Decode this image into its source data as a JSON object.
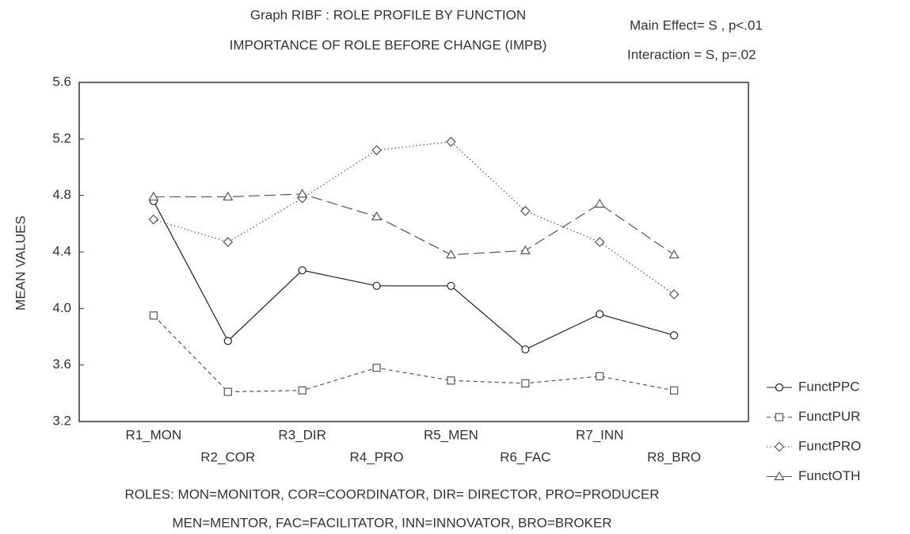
{
  "chart_data": {
    "type": "line",
    "title": "Graph RIBF : ROLE PROFILE  BY FUNCTION",
    "subtitle": "IMPORTANCE OF ROLE BEFORE CHANGE (IMPB)",
    "annotations": [
      "Main Effect= S , p<.01",
      "Interaction = S, p=.02"
    ],
    "y_label": "MEAN VALUES",
    "footnotes": [
      "ROLES: MON=MONITOR, COR=COORDINATOR, DIR= DIRECTOR, PRO=PRODUCER",
      "MEN=MENTOR, FAC=FACILITATOR, INN=INNOVATOR, BRO=BROKER"
    ],
    "categories": [
      "R1_MON",
      "R2_COR",
      "R3_DIR",
      "R4_PRO",
      "R5_MEN",
      "R6_FAC",
      "R7_INN",
      "R8_BRO"
    ],
    "series": [
      {
        "name": "FunctPPC",
        "color": "#222222",
        "marker": "circle",
        "dash": "solid",
        "values": [
          4.76,
          3.77,
          4.27,
          4.16,
          4.16,
          3.71,
          3.96,
          3.81
        ]
      },
      {
        "name": "FunctPUR",
        "color": "#555555",
        "marker": "square",
        "dash": "dashed",
        "values": [
          3.95,
          3.41,
          3.42,
          3.58,
          3.49,
          3.47,
          3.52,
          3.42
        ]
      },
      {
        "name": "FunctPRO",
        "color": "#555555",
        "marker": "diamond",
        "dash": "dotted",
        "values": [
          4.63,
          4.47,
          4.78,
          5.12,
          5.18,
          4.69,
          4.47,
          4.1
        ]
      },
      {
        "name": "FunctOTH",
        "color": "#555555",
        "marker": "triangle",
        "dash": "longdash",
        "values": [
          4.79,
          4.79,
          4.81,
          4.65,
          4.38,
          4.41,
          4.74,
          4.38
        ]
      }
    ],
    "ylim": [
      3.2,
      5.6
    ],
    "yticks": [
      3.2,
      3.6,
      {
        "value": 4,
        "label": "4.0"
      },
      4.4,
      4.8,
      5.2,
      5.6
    ],
    "legend": "right"
  }
}
